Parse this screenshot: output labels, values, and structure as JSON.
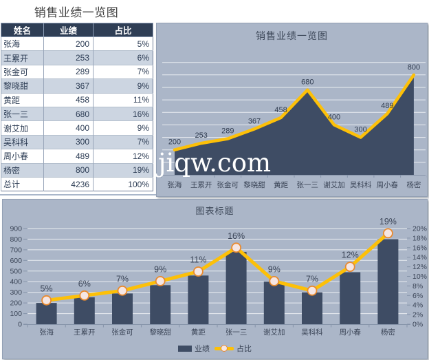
{
  "sheet": {
    "title": "销售业绩一览图",
    "watermark": "jiqw.com"
  },
  "table": {
    "headers": [
      "姓名",
      "业绩",
      "占比"
    ],
    "rows": [
      {
        "name": "张海",
        "value": "200",
        "pct": "5%"
      },
      {
        "name": "王累开",
        "value": "253",
        "pct": "6%"
      },
      {
        "name": "张金可",
        "value": "289",
        "pct": "7%"
      },
      {
        "name": "黎晓甜",
        "value": "367",
        "pct": "9%"
      },
      {
        "name": "黄距",
        "value": "458",
        "pct": "11%"
      },
      {
        "name": "张一三",
        "value": "680",
        "pct": "16%"
      },
      {
        "name": "谢艾加",
        "value": "400",
        "pct": "9%"
      },
      {
        "name": "吴科科",
        "value": "300",
        "pct": "7%"
      },
      {
        "name": "周小春",
        "value": "489",
        "pct": "12%"
      },
      {
        "name": "杨密",
        "value": "800",
        "pct": "19%"
      },
      {
        "name": "总计",
        "value": "4236",
        "pct": "100%"
      }
    ]
  },
  "chart_data": [
    {
      "type": "area",
      "title": "销售业绩一览图",
      "categories": [
        "张海",
        "王累开",
        "张金可",
        "黎晓甜",
        "黄距",
        "张一三",
        "谢艾加",
        "吴科科",
        "周小春",
        "杨密"
      ],
      "series": [
        {
          "name": "业绩",
          "values": [
            200,
            253,
            289,
            367,
            458,
            680,
            400,
            300,
            489,
            800
          ]
        }
      ],
      "data_labels": [
        "200",
        "253",
        "289",
        "367",
        "458",
        "680",
        "400",
        "300",
        "489",
        "800"
      ],
      "ylim": [
        0,
        1000
      ],
      "grid_step": 100,
      "grid": true,
      "legend": "none"
    },
    {
      "type": "bar",
      "title": "图表标题",
      "categories": [
        "张海",
        "王累开",
        "张金可",
        "黎晓甜",
        "黄距",
        "张一三",
        "谢艾加",
        "吴科科",
        "周小春",
        "杨密"
      ],
      "series": [
        {
          "name": "业绩",
          "type": "bar",
          "axis": "left",
          "values": [
            200,
            253,
            289,
            367,
            458,
            680,
            400,
            300,
            489,
            800
          ]
        },
        {
          "name": "占比",
          "type": "line",
          "axis": "right",
          "values": [
            5,
            6,
            7,
            9,
            11,
            16,
            9,
            7,
            12,
            19
          ],
          "data_labels": [
            "5%",
            "6%",
            "7%",
            "9%",
            "11%",
            "16%",
            "9%",
            "7%",
            "12%",
            "19%"
          ]
        }
      ],
      "left_axis": {
        "min": 0,
        "max": 900,
        "step": 100,
        "tick_labels": [
          "0",
          "100",
          "200",
          "300",
          "400",
          "500",
          "600",
          "700",
          "800",
          "900"
        ]
      },
      "right_axis": {
        "min": 0,
        "max": 20,
        "step": 2,
        "tick_labels": [
          "0%",
          "2%",
          "4%",
          "6%",
          "8%",
          "10%",
          "12%",
          "14%",
          "16%",
          "18%",
          "20%"
        ]
      },
      "grid": true,
      "legend_position": "bottom"
    }
  ],
  "colors": {
    "chart_bg": "#abb6c8",
    "chart_border": "#93a0b4",
    "series_dark": "#3e4c64",
    "series_gold": "#fdc008",
    "marker_fill": "#f5e6e3",
    "marker_stroke": "#e98a2e",
    "gridline": "#ffffff",
    "axis_text": "#3b4557",
    "axis_line": "#8593a9",
    "table_header_bg": "#2f3e55",
    "table_header_text": "#ffffff",
    "table_row_alt": "#ccd5e1",
    "table_border": "#8897ae",
    "table_text": "#2c3c54",
    "sheet_title_text": "#3f3f3f",
    "watermark_color": "#ffffff"
  }
}
